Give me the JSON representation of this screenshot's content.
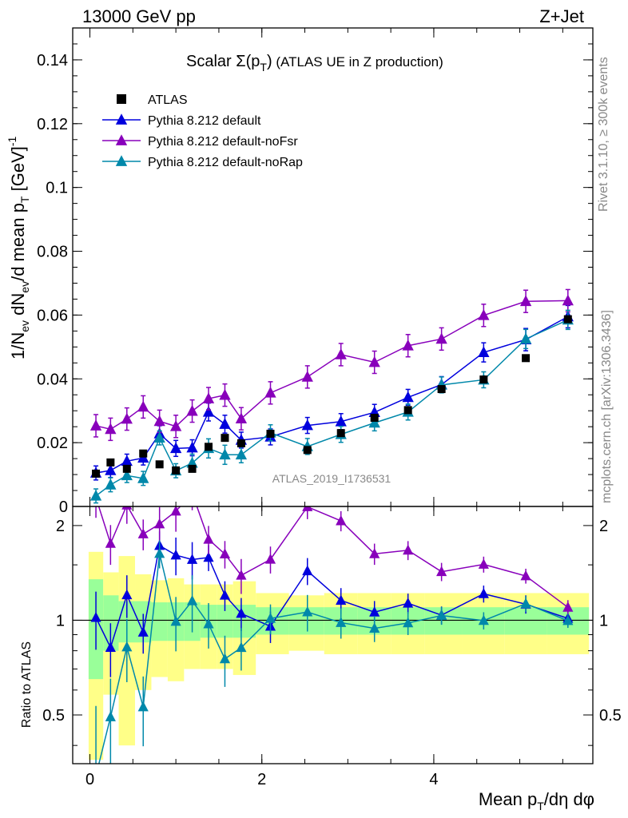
{
  "header": {
    "left": "13000 GeV pp",
    "right": "Z+Jet"
  },
  "side_labels": {
    "rivet": "Rivet 3.1.10, ≥ 300k events",
    "mcplots": "mcplots.cern.ch [arXiv:1306.3436]"
  },
  "watermark": "ATLAS_2019_I1736531",
  "chart_data": {
    "type": "line",
    "title": "Scalar Σ(p_T) (ATLAS UE in Z production)",
    "title_parts": {
      "main": "Scalar Σ(p",
      "sub": "T",
      "close": ")",
      "rest": " (ATLAS UE in Z production)"
    },
    "xlabel": "Mean p_T/dη dφ",
    "xlabel_parts": {
      "a": "Mean p",
      "sub": "T",
      "b": "/dη dφ"
    },
    "ylabel": "1/N_ev dN_ev/d mean p_T [GeV]^-1",
    "ylabel_parts": {
      "a": "1/N",
      "s1": "ev",
      "b": " dN",
      "s2": "ev",
      "c": "/d mean p",
      "s3": "T",
      "d": " [GeV]",
      "sup": "-1"
    },
    "ratio_ylabel": "Ratio to ATLAS",
    "xlim": [
      -0.2,
      5.85
    ],
    "ylim": [
      0,
      0.15
    ],
    "ratio_ylim": [
      0.35,
      2.3
    ],
    "x_ticks": [
      0,
      2,
      4
    ],
    "x_tick_labels": [
      "0",
      "2",
      "4"
    ],
    "y_ticks": [
      0,
      0.02,
      0.04,
      0.06,
      0.08,
      0.1,
      0.12,
      0.14
    ],
    "y_tick_labels": [
      "0",
      "0.02",
      "0.04",
      "0.06",
      "0.08",
      "0.1",
      "0.12",
      "0.14"
    ],
    "ratio_ticks": [
      0.5,
      1,
      2
    ],
    "ratio_tick_labels": [
      "0.5",
      "1",
      "2"
    ],
    "legend_position": "top-left",
    "data": {
      "name": "ATLAS",
      "x": [
        0.07,
        0.24,
        0.43,
        0.62,
        0.81,
        1.0,
        1.19,
        1.38,
        1.57,
        1.76,
        2.1,
        2.53,
        2.92,
        3.31,
        3.7,
        4.09,
        4.58,
        5.07,
        5.56
      ],
      "y": [
        0.0103,
        0.0138,
        0.0118,
        0.0166,
        0.0132,
        0.0113,
        0.0118,
        0.0187,
        0.0215,
        0.0198,
        0.0228,
        0.0177,
        0.023,
        0.0278,
        0.0302,
        0.0368,
        0.0398,
        0.0465,
        0.0587
      ],
      "band_inner": [
        0.35,
        0.2,
        0.15,
        0.15,
        0.14,
        0.14,
        0.14,
        0.12,
        0.12,
        0.12,
        0.1,
        0.1,
        0.1,
        0.1,
        0.1,
        0.1,
        0.1,
        0.1,
        0.1
      ],
      "band_outer": [
        0.65,
        0.42,
        0.6,
        0.4,
        0.34,
        0.36,
        0.3,
        0.3,
        0.3,
        0.33,
        0.22,
        0.2,
        0.22,
        0.22,
        0.22,
        0.22,
        0.22,
        0.22,
        0.22
      ]
    },
    "series": [
      {
        "name": "Pythia 8.212 default",
        "color": "#0000dd",
        "y": [
          0.0105,
          0.0113,
          0.0142,
          0.0152,
          0.0228,
          0.0182,
          0.0184,
          0.0296,
          0.0258,
          0.0208,
          0.0218,
          0.0254,
          0.0266,
          0.0295,
          0.0342,
          0.0382,
          0.0483,
          0.0523,
          0.0595
        ],
        "yerr": [
          0.0022,
          0.0022,
          0.0022,
          0.0022,
          0.0025,
          0.0025,
          0.0025,
          0.0028,
          0.0028,
          0.0025,
          0.0025,
          0.0025,
          0.0025,
          0.0025,
          0.0025,
          0.0025,
          0.003,
          0.0035,
          0.0035
        ]
      },
      {
        "name": "Pythia 8.212 default-noFsr",
        "color": "#8800bb",
        "y": [
          0.0253,
          0.0242,
          0.0274,
          0.0312,
          0.0267,
          0.0251,
          0.0299,
          0.0338,
          0.0349,
          0.0275,
          0.0356,
          0.0406,
          0.0476,
          0.0452,
          0.0504,
          0.0525,
          0.0599,
          0.0643,
          0.0645
        ],
        "yerr": [
          0.0035,
          0.0035,
          0.0035,
          0.0035,
          0.0035,
          0.0035,
          0.0035,
          0.0035,
          0.0035,
          0.0035,
          0.0035,
          0.0035,
          0.0035,
          0.0035,
          0.0035,
          0.0035,
          0.0035,
          0.0035,
          0.0035
        ]
      },
      {
        "name": "Pythia 8.212 default-noRap",
        "color": "#0088aa",
        "y": [
          0.0033,
          0.0068,
          0.0097,
          0.0088,
          0.0215,
          0.0112,
          0.0136,
          0.0182,
          0.0162,
          0.0162,
          0.0231,
          0.0188,
          0.0226,
          0.0262,
          0.0296,
          0.0381,
          0.0397,
          0.0525,
          0.0585
        ],
        "yerr": [
          0.0022,
          0.0022,
          0.0022,
          0.0022,
          0.0022,
          0.0022,
          0.0028,
          0.003,
          0.003,
          0.0025,
          0.0025,
          0.0025,
          0.0025,
          0.0025,
          0.0025,
          0.0025,
          0.0025,
          0.003,
          0.003
        ]
      }
    ]
  }
}
